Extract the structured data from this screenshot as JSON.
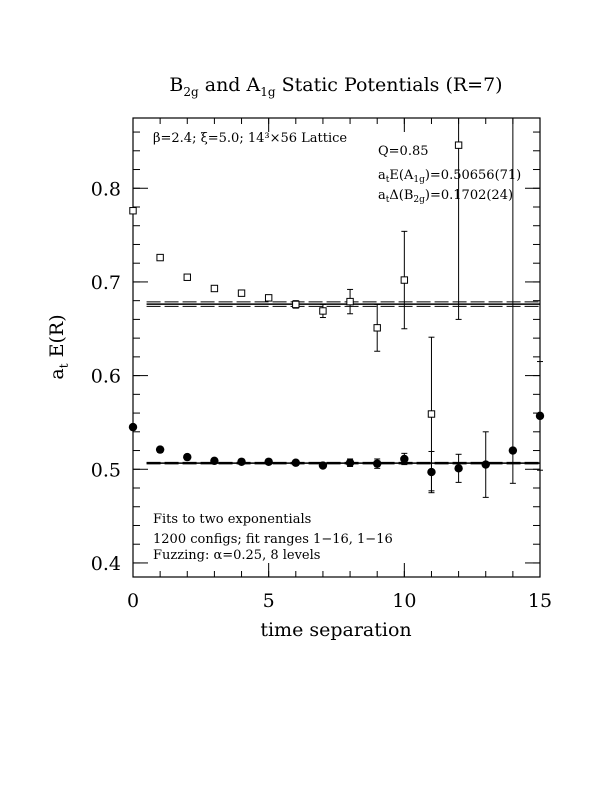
{
  "chart_data": {
    "type": "scatter",
    "title": {
      "b": "B",
      "b_sub": "2g",
      "mid": " and A",
      "a_sub": "1g",
      "tail": " Static Potentials (R=7)"
    },
    "xlabel": "time separation",
    "ylabel": {
      "main": "a",
      "sub": "t",
      "rest": " E(R)"
    },
    "xlim": [
      0,
      15
    ],
    "ylim": [
      0.385,
      0.875
    ],
    "x_ticks": [
      0,
      5,
      10,
      15
    ],
    "x_tick_labels": [
      "0",
      "5",
      "10",
      "15"
    ],
    "y_ticks": [
      0.4,
      0.5,
      0.6,
      0.7,
      0.8
    ],
    "y_tick_labels": [
      "0.4",
      "0.5",
      "0.6",
      "0.7",
      "0.8"
    ],
    "x_minor_step": 1,
    "y_minor_step": 0.02,
    "grid": false,
    "annotations": {
      "lattice": "β=2.4; ξ=5.0; 14³×56 Lattice",
      "q": "Q=0.85",
      "energy": {
        "pre": "a",
        "pre_sub": "t",
        "mid": "E(A",
        "mid_sub": "1g",
        "post": ")=0.50656(71)"
      },
      "gap": {
        "pre": "a",
        "pre_sub": "t",
        "mid": "Δ(B",
        "mid_sub": "2g",
        "post": ")=0.1702(24)"
      },
      "fit_lines": [
        "Fits to two exponentials",
        "1200 configs; fit ranges 1−16, 1−16",
        "Fuzzing: α=0.25, 8 levels"
      ]
    },
    "series": [
      {
        "marker": "open-square",
        "x": [
          0,
          1,
          2,
          3,
          4,
          5,
          6,
          7,
          8,
          9,
          10,
          11,
          12,
          13,
          14,
          15
        ],
        "y": [
          0.776,
          0.726,
          0.705,
          0.693,
          0.688,
          0.683,
          0.676,
          0.669,
          0.679,
          0.651,
          0.702,
          0.559,
          0.846,
          null,
          null,
          null
        ],
        "err": [
          0.001,
          0.001,
          0.001,
          0.002,
          0.002,
          0.002,
          0.004,
          0.007,
          0.013,
          0.025,
          0.052,
          0.082,
          0.186,
          null,
          null,
          null
        ]
      },
      {
        "marker": "filled-circle",
        "x": [
          0,
          1,
          2,
          3,
          4,
          5,
          6,
          7,
          8,
          9,
          10,
          11,
          12,
          13,
          14,
          15
        ],
        "y": [
          0.545,
          0.521,
          0.513,
          0.509,
          0.508,
          0.508,
          0.507,
          0.504,
          0.507,
          0.506,
          0.511,
          0.497,
          0.501,
          0.505,
          0.52,
          0.557
        ],
        "err": [
          0.0005,
          0.0006,
          0.0008,
          0.001,
          0.0012,
          0.0015,
          0.002,
          0.003,
          0.004,
          0.005,
          0.006,
          0.022,
          0.015,
          0.035,
          0.035,
          0.058
        ],
        "err_hi": [
          null,
          null,
          null,
          null,
          null,
          null,
          null,
          null,
          null,
          null,
          null,
          null,
          null,
          null,
          0.38,
          null
        ]
      }
    ],
    "fit_bands": [
      {
        "center": 0.6763,
        "half_width": 0.0024,
        "from": 0.5,
        "to": 15
      },
      {
        "center": 0.50656,
        "half_width": 0.0007,
        "from": 0.5,
        "to": 15
      }
    ]
  }
}
